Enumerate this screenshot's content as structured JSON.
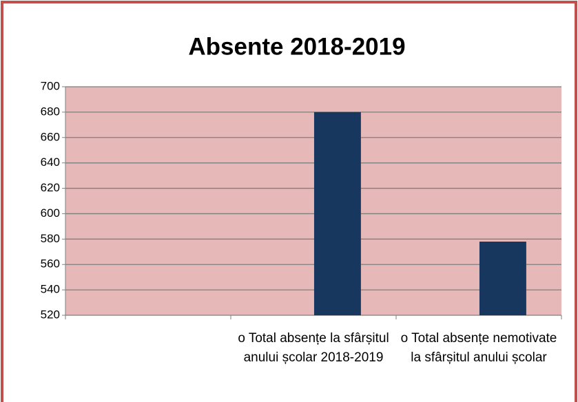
{
  "chart_data": {
    "type": "bar",
    "title": "Absente 2018-2019",
    "categories": [
      null,
      "o Total absențe la sfârșitul anului școlar 2018-2019",
      "o Total absențe nemotivate la sfârșitul anului școlar"
    ],
    "values": [
      null,
      680,
      578
    ],
    "color": "#17375e",
    "ylim": [
      520,
      700
    ],
    "yticks": [
      520,
      540,
      560,
      580,
      600,
      620,
      640,
      660,
      680,
      700
    ],
    "grid": true
  }
}
